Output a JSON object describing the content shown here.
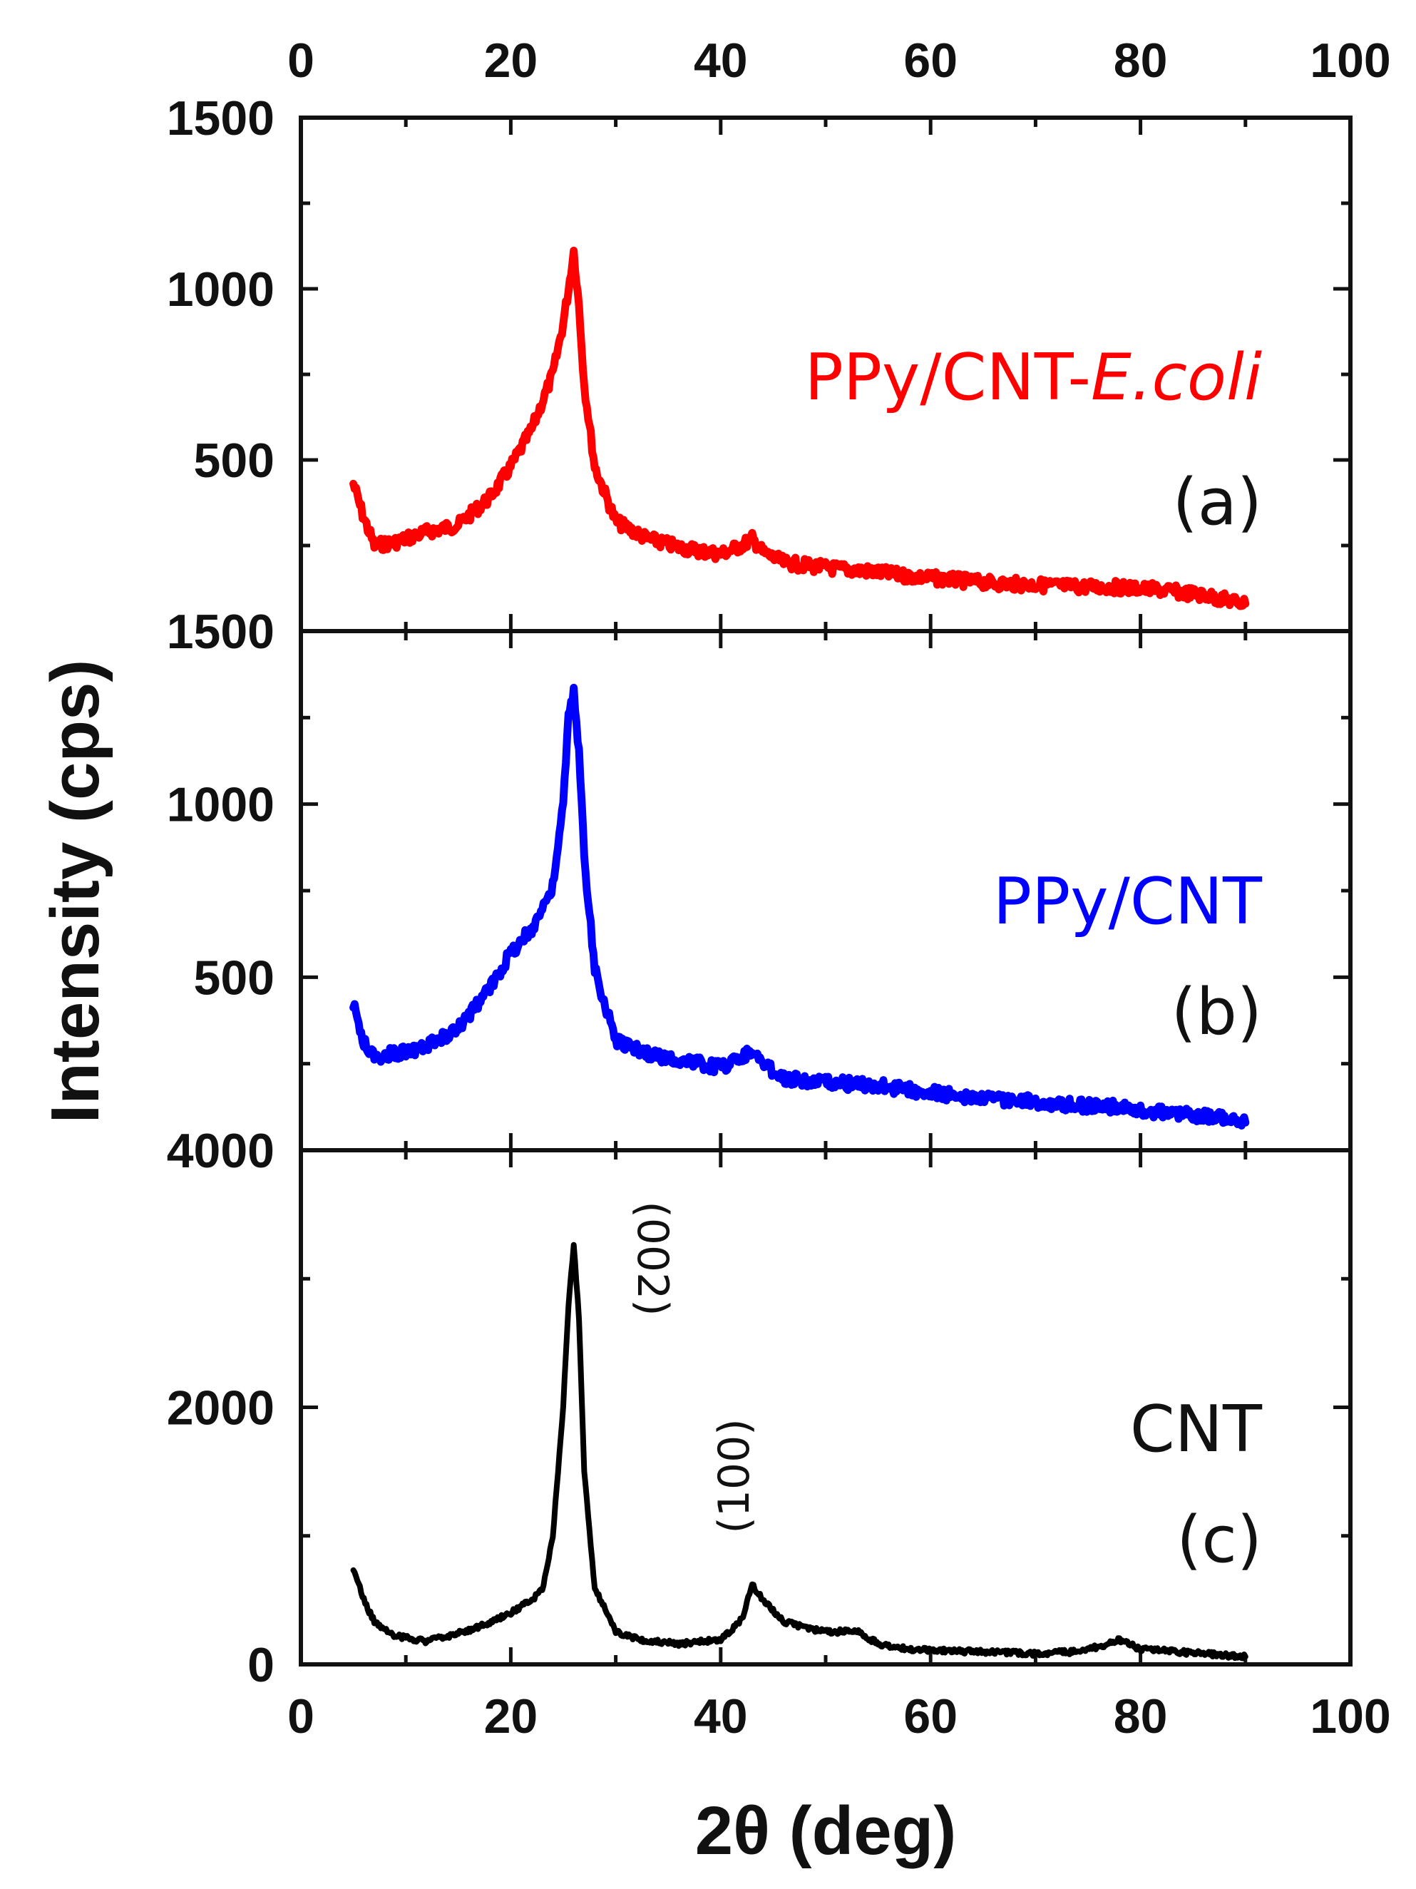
{
  "chart_data": {
    "type": "line",
    "title": "",
    "xlabel": "2θ (deg)",
    "ylabel": "Intensity (cps)",
    "xlim": [
      0,
      100
    ],
    "x_ticks": [
      "0",
      "20",
      "40",
      "60",
      "80",
      "100"
    ],
    "panels": [
      {
        "id": "a",
        "series_name": "PPy/CNT-",
        "series_name_italic": "E.coli",
        "panel_label": "(a)",
        "color": "#ff0000",
        "ylim": [
          0,
          1500
        ],
        "y_ticks": [
          500,
          1000
        ],
        "y_tick_labels": [
          "500",
          "1000"
        ],
        "top_label": "1500",
        "x": [
          5,
          6,
          7,
          9,
          12,
          15,
          18,
          20,
          22,
          24,
          25,
          25.5,
          26,
          26.5,
          27,
          28,
          30,
          33,
          36,
          40,
          42,
          43,
          44,
          46,
          50,
          54,
          58,
          62,
          66,
          70,
          74,
          78,
          82,
          86,
          90
        ],
        "values": [
          430,
          330,
          250,
          260,
          290,
          310,
          390,
          480,
          590,
          750,
          900,
          1000,
          1110,
          950,
          720,
          480,
          320,
          270,
          245,
          225,
          250,
          270,
          230,
          200,
          185,
          175,
          160,
          150,
          140,
          135,
          130,
          128,
          120,
          105,
          80
        ]
      },
      {
        "id": "b",
        "series_name": "PPy/CNT",
        "panel_label": "(b)",
        "color": "#0000ff",
        "ylim": [
          0,
          1500
        ],
        "y_ticks": [
          500,
          1000
        ],
        "y_tick_labels": [
          "500",
          "1000"
        ],
        "top_label": "1500",
        "x": [
          5,
          6,
          7,
          9,
          12,
          15,
          18,
          20,
          22,
          24,
          25,
          25.5,
          26,
          26.5,
          27,
          28,
          30,
          33,
          36,
          40,
          42,
          43,
          44,
          46,
          50,
          54,
          58,
          62,
          66,
          70,
          74,
          78,
          82,
          86,
          90
        ],
        "values": [
          420,
          310,
          270,
          280,
          300,
          350,
          470,
          570,
          640,
          760,
          1000,
          1250,
          1320,
          1150,
          850,
          520,
          320,
          280,
          260,
          240,
          270,
          290,
          250,
          210,
          195,
          190,
          175,
          160,
          150,
          140,
          130,
          125,
          110,
          100,
          80
        ]
      },
      {
        "id": "c",
        "series_name": "CNT",
        "panel_label": "(c)",
        "color": "#000000",
        "ylim": [
          0,
          4000
        ],
        "y_ticks": [
          0,
          2000
        ],
        "y_tick_labels": [
          "0",
          "2000"
        ],
        "top_label": "4000",
        "x": [
          5,
          6,
          7,
          9,
          12,
          15,
          18,
          20,
          22,
          23,
          24,
          25,
          25.5,
          26,
          26.5,
          27,
          28,
          30,
          33,
          36,
          40,
          42,
          43,
          44,
          46,
          50,
          53,
          55,
          58,
          62,
          66,
          70,
          74,
          77,
          78,
          80,
          84,
          90
        ],
        "values": [
          750,
          500,
          330,
          220,
          180,
          240,
          320,
          400,
          500,
          580,
          1000,
          2000,
          2800,
          3270,
          2700,
          1500,
          600,
          250,
          180,
          160,
          190,
          350,
          620,
          500,
          330,
          250,
          260,
          160,
          120,
          105,
          95,
          85,
          100,
          160,
          190,
          120,
          95,
          60
        ]
      }
    ],
    "annotations": [
      "(002)",
      "(100)"
    ]
  }
}
